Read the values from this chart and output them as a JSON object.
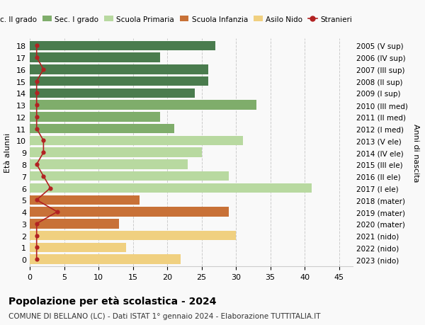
{
  "ages": [
    18,
    17,
    16,
    15,
    14,
    13,
    12,
    11,
    10,
    9,
    8,
    7,
    6,
    5,
    4,
    3,
    2,
    1,
    0
  ],
  "right_labels": [
    "2005 (V sup)",
    "2006 (IV sup)",
    "2007 (III sup)",
    "2008 (II sup)",
    "2009 (I sup)",
    "2010 (III med)",
    "2011 (II med)",
    "2012 (I med)",
    "2013 (V ele)",
    "2014 (IV ele)",
    "2015 (III ele)",
    "2016 (II ele)",
    "2017 (I ele)",
    "2018 (mater)",
    "2019 (mater)",
    "2020 (mater)",
    "2021 (nido)",
    "2022 (nido)",
    "2023 (nido)"
  ],
  "bar_values": [
    27,
    19,
    26,
    26,
    24,
    33,
    19,
    21,
    31,
    25,
    23,
    29,
    41,
    16,
    29,
    13,
    30,
    14,
    22
  ],
  "bar_colors": [
    "#4a7c4e",
    "#4a7c4e",
    "#4a7c4e",
    "#4a7c4e",
    "#4a7c4e",
    "#7fad6b",
    "#7fad6b",
    "#7fad6b",
    "#b8d9a0",
    "#b8d9a0",
    "#b8d9a0",
    "#b8d9a0",
    "#b8d9a0",
    "#c87137",
    "#c87137",
    "#c87137",
    "#f0d080",
    "#f0d080",
    "#f0d080"
  ],
  "stranieri_values": [
    1,
    1,
    2,
    1,
    1,
    1,
    1,
    1,
    2,
    2,
    1,
    2,
    3,
    1,
    4,
    1,
    1,
    1,
    1
  ],
  "stranieri_color": "#b22222",
  "legend_labels": [
    "Sec. II grado",
    "Sec. I grado",
    "Scuola Primaria",
    "Scuola Infanzia",
    "Asilo Nido",
    "Stranieri"
  ],
  "legend_colors": [
    "#4a7c4e",
    "#7fad6b",
    "#b8d9a0",
    "#c87137",
    "#f0d080",
    "#b22222"
  ],
  "xlabel_bottom": "Età alunni",
  "ylabel_right": "Anni di nascita",
  "title": "Popolazione per età scolastica - 2024",
  "subtitle": "COMUNE DI BELLANO (LC) - Dati ISTAT 1° gennaio 2024 - Elaborazione TUTTITALIA.IT",
  "xlim": [
    0,
    47
  ],
  "xticks": [
    0,
    5,
    10,
    15,
    20,
    25,
    30,
    35,
    40,
    45
  ],
  "background_color": "#f9f9f9",
  "bar_height": 0.8
}
